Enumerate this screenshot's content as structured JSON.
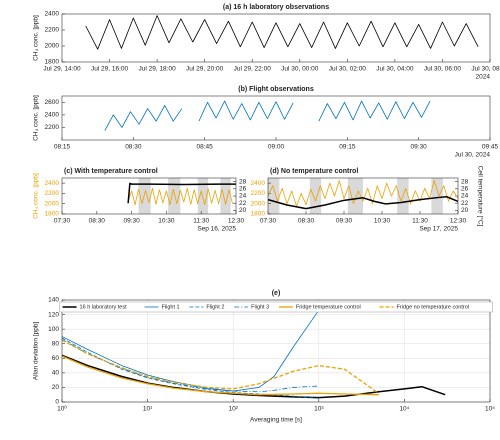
{
  "chart_data": [
    {
      "type": "line",
      "title": "(a) 16 h laboratory observations",
      "ylabel": "CH₄ conc. [ppb]",
      "note": "2024",
      "xlim": [
        14,
        32
      ],
      "xticks": [
        {
          "value": 14,
          "label": "Jul 29, 14:00"
        },
        {
          "value": 16,
          "label": "Jul 29, 16:00"
        },
        {
          "value": 18,
          "label": "Jul 29, 18:00"
        },
        {
          "value": 20,
          "label": "Jul 29, 20:00"
        },
        {
          "value": 22,
          "label": "Jul 29, 22:00"
        },
        {
          "value": 24,
          "label": "Jul 30, 00:00"
        },
        {
          "value": 26,
          "label": "Jul 30, 02:00"
        },
        {
          "value": 28,
          "label": "Jul 30, 04:00"
        },
        {
          "value": 30,
          "label": "Jul 30, 06:00"
        },
        {
          "value": 32,
          "label": "Jul 30, 08:00"
        }
      ],
      "ylim": [
        1800,
        2400
      ],
      "yticks": [
        1800,
        2000,
        2200,
        2400
      ],
      "grid": false,
      "x": [
        15,
        15.5,
        16,
        16.5,
        17,
        17.5,
        18,
        18.5,
        19,
        19.5,
        20,
        20.5,
        21,
        21.5,
        22,
        22.5,
        23,
        23.5,
        24,
        24.5,
        25,
        25.5,
        26,
        26.5,
        27,
        27.5,
        28,
        28.5,
        29,
        29.5,
        30,
        30.5,
        31,
        31.5
      ],
      "series": [
        {
          "color": "#000000",
          "values": [
            2250,
            1960,
            2330,
            1970,
            2350,
            2010,
            2380,
            2040,
            2340,
            2050,
            2330,
            2030,
            2310,
            1990,
            2300,
            1980,
            2290,
            1990,
            2280,
            1980,
            2300,
            1970,
            2290,
            2000,
            2310,
            1990,
            2290,
            1990,
            2270,
            1970,
            2300,
            2000,
            2280,
            1990
          ]
        }
      ]
    },
    {
      "type": "line",
      "title": "(b) Flight observations",
      "ylabel": "CH₄ conc. [ppb]",
      "note": "Jul 30, 2024",
      "xlim": [
        8.25,
        9.75
      ],
      "xticks": [
        {
          "value": 8.25,
          "label": "08:15"
        },
        {
          "value": 8.5,
          "label": "08:30"
        },
        {
          "value": 8.75,
          "label": "08:45"
        },
        {
          "value": 9,
          "label": "09:00"
        },
        {
          "value": 9.25,
          "label": "09:15"
        },
        {
          "value": 9.5,
          "label": "09:30"
        },
        {
          "value": 9.75,
          "label": "09:45"
        }
      ],
      "ylim": [
        2000,
        2700
      ],
      "yticks": [
        2200,
        2400,
        2600
      ],
      "grid": false,
      "x": [
        8.4,
        8.43,
        8.46,
        8.49,
        8.52,
        8.55,
        8.58,
        8.61,
        8.64,
        8.67,
        8.7,
        8.73,
        8.76,
        8.79,
        8.82,
        8.85,
        8.88,
        8.91,
        8.94,
        8.97,
        9.0,
        9.03,
        9.06,
        9.1,
        9.15,
        9.18,
        9.21,
        9.24,
        9.27,
        9.3,
        9.33,
        9.36,
        9.39,
        9.42,
        9.45,
        9.48,
        9.51,
        9.54
      ],
      "series": [
        {
          "color": "#0072bd",
          "values": [
            2150,
            2400,
            2200,
            2450,
            2250,
            2500,
            2300,
            2550,
            2300,
            2500,
            null,
            2300,
            2600,
            2350,
            2620,
            2330,
            2580,
            2320,
            2600,
            2340,
            2610,
            2330,
            2590,
            null,
            2300,
            2580,
            2340,
            2600,
            2320,
            2620,
            2350,
            2590,
            2330,
            2610,
            2340,
            2600,
            2360,
            2620
          ]
        }
      ]
    },
    {
      "type": "line",
      "title": "(c) With temperature control",
      "ylabel": "CH₄ conc. [ppb]",
      "note": "Sep 16, 2025",
      "ycolor": "#eda100",
      "xlim": [
        7.5,
        12.5
      ],
      "xticks": [
        {
          "value": 7.5,
          "label": "07:30"
        },
        {
          "value": 8.5,
          "label": "08:30"
        },
        {
          "value": 9.5,
          "label": "09:30"
        },
        {
          "value": 10.5,
          "label": "10:30"
        },
        {
          "value": 11.5,
          "label": "11:30"
        },
        {
          "value": 12.5,
          "label": "12:30"
        }
      ],
      "ylim": [
        1800,
        2500
      ],
      "yticks": [
        1800,
        2000,
        2200,
        2400
      ],
      "y2lim": [
        19,
        29
      ],
      "y2ticks": [
        20,
        22,
        24,
        26,
        28
      ],
      "grid": false,
      "shaded": [
        [
          9.7,
          10.05
        ],
        [
          10.55,
          10.9
        ],
        [
          11.4,
          11.7
        ],
        [
          12.05,
          12.35
        ]
      ],
      "series": [
        {
          "color": "#eda100",
          "x": [
            9.4,
            9.5,
            9.6,
            9.7,
            9.8,
            9.9,
            10,
            10.1,
            10.2,
            10.3,
            10.4,
            10.5,
            10.6,
            10.7,
            10.8,
            10.9,
            11,
            11.1,
            11.2,
            11.3,
            11.4,
            11.5,
            11.6,
            11.7,
            11.8,
            11.9,
            12,
            12.1,
            12.2,
            12.3,
            12.4
          ],
          "values": [
            2050,
            2250,
            1980,
            2280,
            2000,
            2260,
            2020,
            2300,
            1990,
            2270,
            2010,
            2250,
            1980,
            2280,
            2000,
            2260,
            2030,
            2300,
            1990,
            2270,
            2000,
            2250,
            1980,
            2290,
            2010,
            2260,
            2000,
            2280,
            1990,
            2270,
            2000
          ]
        },
        {
          "color": "#000000",
          "axis": "y2",
          "width": 1.5,
          "x": [
            9.4,
            9.45,
            9.5,
            10,
            11,
            12,
            12.5
          ],
          "values": [
            22,
            27.5,
            27.3,
            27.3,
            27.2,
            27.3,
            27.3
          ]
        }
      ]
    },
    {
      "type": "line",
      "title": "(d) No temperature control",
      "y2label": "Cell temperature [°C]",
      "note": "Sep 17, 2025",
      "ycolor": "#eda100",
      "xlim": [
        7.5,
        12.5
      ],
      "xticks": [
        {
          "value": 7.5,
          "label": "07:30"
        },
        {
          "value": 8.5,
          "label": "08:30"
        },
        {
          "value": 9.5,
          "label": "09:30"
        },
        {
          "value": 10.5,
          "label": "10:30"
        },
        {
          "value": 11.5,
          "label": "11:30"
        },
        {
          "value": 12.5,
          "label": "12:30"
        }
      ],
      "ylim": [
        1800,
        2500
      ],
      "yticks": [
        1800,
        2000,
        2200,
        2400
      ],
      "y2lim": [
        19,
        29
      ],
      "y2ticks": [
        20,
        22,
        24,
        26,
        28
      ],
      "grid": false,
      "shaded": [
        [
          7.5,
          7.8
        ],
        [
          8.6,
          8.9
        ],
        [
          9.6,
          10.0
        ],
        [
          10.9,
          11.2
        ],
        [
          11.8,
          12.1
        ]
      ],
      "series": [
        {
          "color": "#eda100",
          "x": [
            7.5,
            7.625,
            7.75,
            7.875,
            8,
            8.125,
            8.25,
            8.375,
            8.5,
            8.625,
            8.75,
            8.875,
            9,
            9.125,
            9.25,
            9.375,
            9.5,
            9.625,
            9.75,
            9.875,
            10,
            10.125,
            10.25,
            10.375,
            10.5,
            10.625,
            10.75,
            10.875,
            11,
            11.125,
            11.25,
            11.375,
            11.5,
            11.625,
            11.75,
            11.875,
            12,
            12.125,
            12.25,
            12.375,
            12.5
          ],
          "values": [
            2150,
            2350,
            2050,
            2300,
            2000,
            2250,
            1950,
            2200,
            1980,
            2280,
            2050,
            2350,
            2100,
            2400,
            2150,
            2450,
            2100,
            2350,
            2000,
            2250,
            2050,
            2300,
            2000,
            2350,
            2100,
            2400,
            2150,
            2350,
            2050,
            2300,
            2000,
            2250,
            2050,
            2300,
            2100,
            2450,
            2150,
            2350,
            2050,
            2250,
            2100
          ]
        },
        {
          "color": "#000000",
          "axis": "y2",
          "width": 1.5,
          "x": [
            7.5,
            8,
            8.5,
            9,
            9.5,
            10,
            10.3,
            10.6,
            11,
            11.5,
            12,
            12.2,
            12.5
          ],
          "values": [
            23,
            21.5,
            20.5,
            21.5,
            22.8,
            23.5,
            22.5,
            21.8,
            22.2,
            23,
            23.6,
            23.8,
            22.5
          ]
        }
      ]
    },
    {
      "type": "line",
      "title": "(e)",
      "xlabel": "Averaging time [s]",
      "ylabel": "Allan deviation [ppb]",
      "xlog": true,
      "legend": "top",
      "xlim": [
        1,
        100000
      ],
      "xticks": [
        {
          "value": 1,
          "label": "10⁰"
        },
        {
          "value": 10,
          "label": "10¹"
        },
        {
          "value": 100,
          "label": "10²"
        },
        {
          "value": 1000,
          "label": "10³"
        },
        {
          "value": 10000,
          "label": "10⁴"
        },
        {
          "value": 100000,
          "label": "10⁵"
        }
      ],
      "ylim": [
        0,
        140
      ],
      "yticks": [
        0,
        20,
        40,
        60,
        80,
        100,
        120,
        140
      ],
      "grid": true,
      "series": [
        {
          "name": "16 h laboratory test",
          "color": "#000000",
          "dash": "solid",
          "width": 1.5,
          "x": [
            1,
            2,
            5,
            10,
            20,
            50,
            100,
            200,
            500,
            1000,
            2000,
            5000,
            10000,
            16000,
            30000
          ],
          "values": [
            64,
            50,
            35,
            26,
            20,
            14,
            11,
            9,
            7,
            6,
            8,
            14,
            18,
            21,
            10
          ]
        },
        {
          "name": "Flight 1",
          "color": "#0072bd",
          "dash": "solid",
          "x": [
            1,
            2,
            5,
            10,
            20,
            50,
            100,
            200,
            300,
            500,
            1000
          ],
          "values": [
            90,
            72,
            50,
            37,
            28,
            19,
            15,
            20,
            35,
            75,
            126
          ]
        },
        {
          "name": "Flight 2",
          "color": "#0072bd",
          "dash": "dashed",
          "x": [
            1,
            2,
            5,
            10,
            20,
            50,
            100,
            200,
            300,
            500,
            1000
          ],
          "values": [
            88,
            68,
            45,
            33,
            25,
            17,
            13,
            11,
            10,
            8,
            5
          ]
        },
        {
          "name": "Flight 3",
          "color": "#0072bd",
          "dash": "dashdot",
          "x": [
            1,
            2,
            5,
            10,
            20,
            50,
            100,
            200,
            300,
            500,
            1000
          ],
          "values": [
            86,
            66,
            46,
            34,
            26,
            18,
            15,
            14,
            16,
            20,
            22
          ]
        },
        {
          "name": "Fridge temperature control",
          "color": "#eda100",
          "dash": "solid",
          "width": 1.3,
          "x": [
            1,
            2,
            5,
            10,
            20,
            50,
            100,
            200,
            500,
            1000,
            2000,
            5000
          ],
          "values": [
            63,
            48,
            33,
            25,
            19,
            14,
            12,
            10,
            11,
            12,
            11,
            10
          ]
        },
        {
          "name": "Fridge no temperature control",
          "color": "#eda100",
          "dash": "dashed",
          "width": 1.3,
          "x": [
            1,
            2,
            5,
            10,
            20,
            50,
            100,
            200,
            500,
            1000,
            2000,
            5000
          ],
          "values": [
            85,
            66,
            47,
            35,
            27,
            20,
            18,
            25,
            42,
            50,
            45,
            12
          ]
        }
      ]
    }
  ]
}
